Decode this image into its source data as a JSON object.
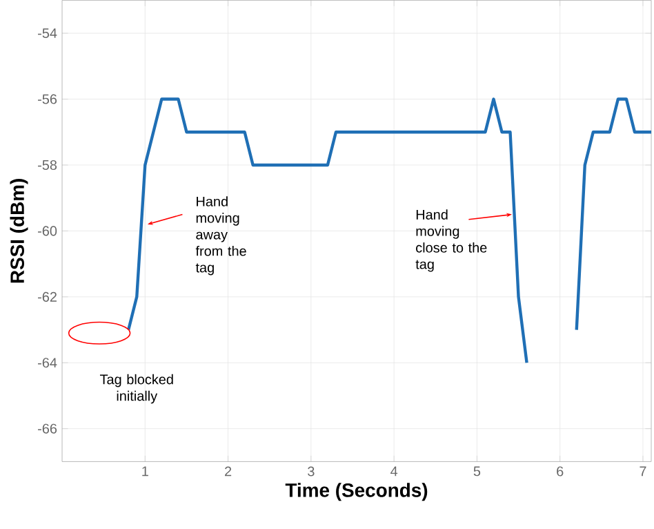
{
  "chart_data": {
    "type": "line",
    "xlabel": "Time (Seconds)",
    "ylabel": "RSSI (dBm)",
    "x": [
      0.8,
      0.9,
      1.0,
      1.2,
      1.4,
      1.5,
      2.2,
      2.3,
      3.2,
      3.3,
      5.1,
      5.2,
      5.3,
      5.4,
      5.5,
      5.6,
      5.9,
      6.2,
      6.3,
      6.4,
      6.6,
      6.7,
      6.8,
      6.9,
      7.1
    ],
    "values": [
      -63,
      -62,
      -58,
      -56,
      -56,
      -57,
      -57,
      -58,
      -58,
      -57,
      -57,
      -56,
      -57,
      -57,
      -62,
      -64,
      null,
      -63,
      -58,
      -57,
      -57,
      -56,
      -56,
      -57,
      -57
    ],
    "color": "#1f6fb5",
    "xlim": [
      0,
      7.1
    ],
    "ylim": [
      -67,
      -53
    ],
    "xticks": [
      1,
      2,
      3,
      4,
      5,
      6,
      7
    ],
    "yticks": [
      -66,
      -64,
      -62,
      -60,
      -58,
      -56,
      -54
    ],
    "grid": true,
    "line_style": "solid",
    "marker": "none",
    "annotations": [
      {
        "text": "Hand moving away from the tag",
        "x": 1.0,
        "y": -59.8
      },
      {
        "text": "Hand moving close to the tag",
        "x": 5.45,
        "y": -59.5
      },
      "Tag blocked initially"
    ]
  }
}
